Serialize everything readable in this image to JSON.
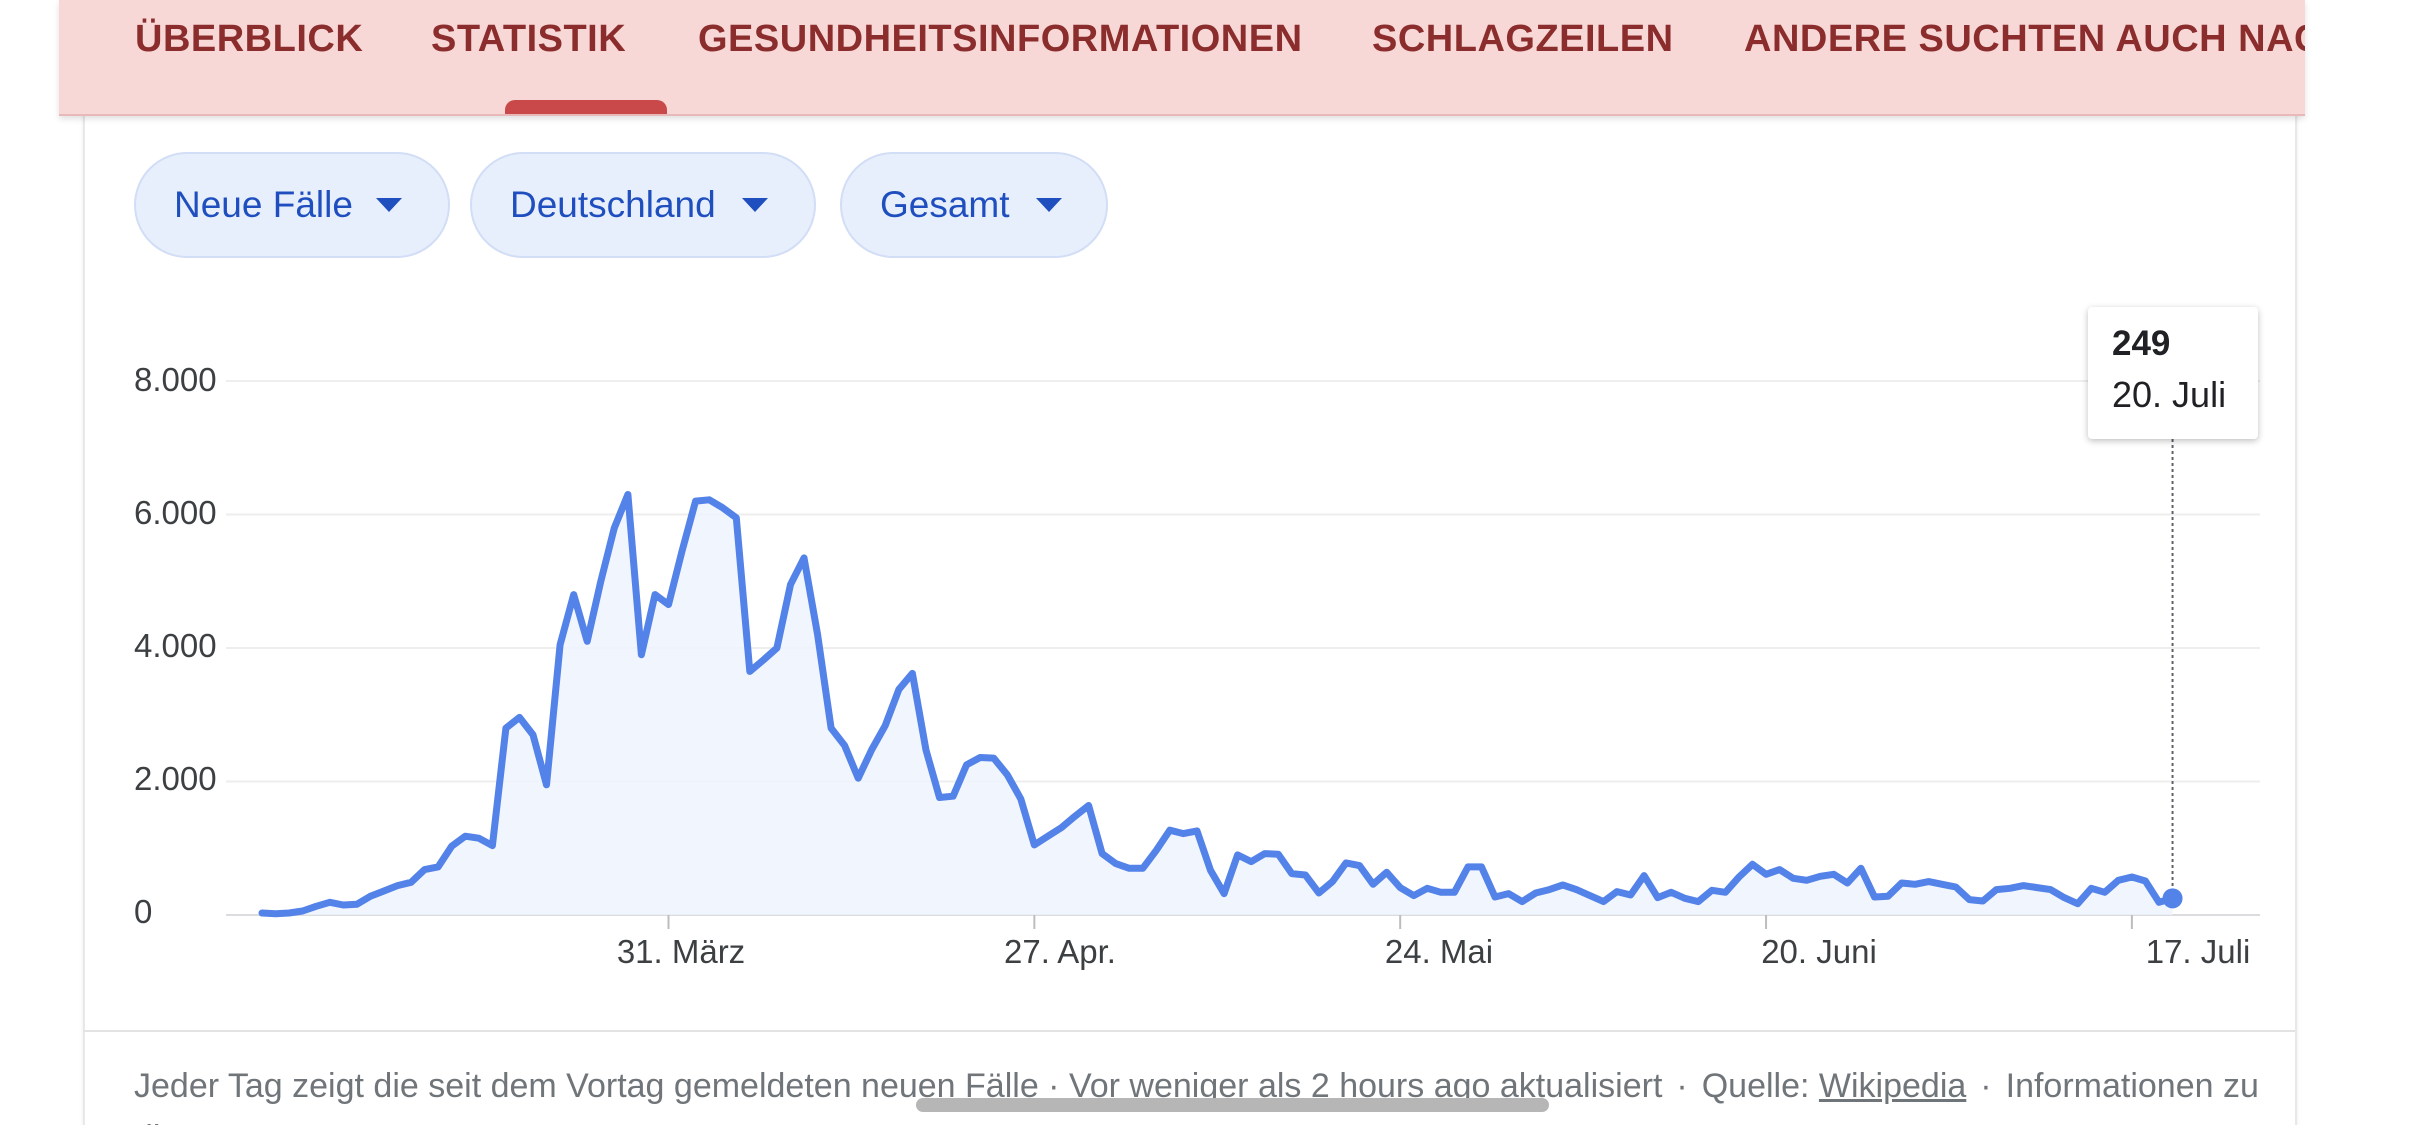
{
  "tabs": [
    {
      "label": "ÜBERBLICK"
    },
    {
      "label": "STATISTIK"
    },
    {
      "label": "GESUNDHEITSINFORMATIONEN"
    },
    {
      "label": "SCHLAGZEILEN"
    },
    {
      "label": "ANDERE SUCHTEN AUCH NACH"
    }
  ],
  "selected_tab": "STATISTIK",
  "filters": [
    {
      "label": "Neue Fälle"
    },
    {
      "label": "Deutschland"
    },
    {
      "label": "Gesamt"
    }
  ],
  "colors": {
    "tab_bar_bg": "#f8d7d7",
    "tab_text": "#8b2d2d",
    "tab_indicator": "#c9484a",
    "chip_bg": "#e8effc",
    "chip_text": "#1f4fbf",
    "line": "#5382e8",
    "area": "#eef2fc"
  },
  "tooltip": {
    "value": "249",
    "date": "20. Juli"
  },
  "footer": {
    "text": "Jeder Tag zeigt die seit dem Vortag gemeldeten neuen Fälle · Vor weniger als 2 hours ago aktualisiert",
    "source_label": "Quelle:",
    "source_link": "Wikipedia",
    "info_link": "Informationen zu diesen Daten"
  },
  "chart_data": {
    "type": "area",
    "ylim": [
      0,
      8000
    ],
    "y_ticks": [
      "0",
      "2.000",
      "4.000",
      "6.000",
      "8.000"
    ],
    "y_tick_values": [
      0,
      2000,
      4000,
      6000,
      8000
    ],
    "x_ticks": [
      "31. März",
      "27. Apr.",
      "24. Mai",
      "20. Juni",
      "17. Juli"
    ],
    "x_tick_dates": [
      "2020-03-31",
      "2020-04-27",
      "2020-05-24",
      "2020-06-20",
      "2020-07-17"
    ],
    "x": [
      "2020-03-01",
      "2020-03-02",
      "2020-03-03",
      "2020-03-04",
      "2020-03-05",
      "2020-03-06",
      "2020-03-07",
      "2020-03-08",
      "2020-03-09",
      "2020-03-10",
      "2020-03-11",
      "2020-03-12",
      "2020-03-13",
      "2020-03-14",
      "2020-03-15",
      "2020-03-16",
      "2020-03-17",
      "2020-03-18",
      "2020-03-19",
      "2020-03-20",
      "2020-03-21",
      "2020-03-22",
      "2020-03-23",
      "2020-03-24",
      "2020-03-25",
      "2020-03-26",
      "2020-03-27",
      "2020-03-28",
      "2020-03-29",
      "2020-03-30",
      "2020-03-31",
      "2020-04-01",
      "2020-04-02",
      "2020-04-03",
      "2020-04-04",
      "2020-04-05",
      "2020-04-06",
      "2020-04-07",
      "2020-04-08",
      "2020-04-09",
      "2020-04-10",
      "2020-04-11",
      "2020-04-12",
      "2020-04-13",
      "2020-04-14",
      "2020-04-15",
      "2020-04-16",
      "2020-04-17",
      "2020-04-18",
      "2020-04-19",
      "2020-04-20",
      "2020-04-21",
      "2020-04-22",
      "2020-04-23",
      "2020-04-24",
      "2020-04-25",
      "2020-04-26",
      "2020-04-27",
      "2020-04-28",
      "2020-04-29",
      "2020-04-30",
      "2020-05-01",
      "2020-05-02",
      "2020-05-03",
      "2020-05-04",
      "2020-05-05",
      "2020-05-06",
      "2020-05-07",
      "2020-05-08",
      "2020-05-09",
      "2020-05-10",
      "2020-05-11",
      "2020-05-12",
      "2020-05-13",
      "2020-05-14",
      "2020-05-15",
      "2020-05-16",
      "2020-05-17",
      "2020-05-18",
      "2020-05-19",
      "2020-05-20",
      "2020-05-21",
      "2020-05-22",
      "2020-05-23",
      "2020-05-24",
      "2020-05-25",
      "2020-05-26",
      "2020-05-27",
      "2020-05-28",
      "2020-05-29",
      "2020-05-30",
      "2020-05-31",
      "2020-06-01",
      "2020-06-02",
      "2020-06-03",
      "2020-06-04",
      "2020-06-05",
      "2020-06-06",
      "2020-06-07",
      "2020-06-08",
      "2020-06-09",
      "2020-06-10",
      "2020-06-11",
      "2020-06-12",
      "2020-06-13",
      "2020-06-14",
      "2020-06-15",
      "2020-06-16",
      "2020-06-17",
      "2020-06-18",
      "2020-06-19",
      "2020-06-20",
      "2020-06-21",
      "2020-06-22",
      "2020-06-23",
      "2020-06-24",
      "2020-06-25",
      "2020-06-26",
      "2020-06-27",
      "2020-06-28",
      "2020-06-29",
      "2020-06-30",
      "2020-07-01",
      "2020-07-02",
      "2020-07-03",
      "2020-07-04",
      "2020-07-05",
      "2020-07-06",
      "2020-07-07",
      "2020-07-08",
      "2020-07-09",
      "2020-07-10",
      "2020-07-11",
      "2020-07-12",
      "2020-07-13",
      "2020-07-14",
      "2020-07-15",
      "2020-07-16",
      "2020-07-17",
      "2020-07-18",
      "2020-07-19",
      "2020-07-20"
    ],
    "series": [
      {
        "values": [
          30,
          20,
          30,
          60,
          130,
          190,
          150,
          160,
          280,
          360,
          440,
          490,
          680,
          720,
          1030,
          1180,
          1150,
          1040,
          2800,
          2960,
          2700,
          1950,
          4050,
          4800,
          4100,
          5000,
          5800,
          6300,
          3900,
          4800,
          4650,
          5450,
          6200,
          6220,
          6100,
          5950,
          3650,
          3820,
          4000,
          4950,
          5350,
          4200,
          2800,
          2540,
          2050,
          2480,
          2840,
          3380,
          3620,
          2470,
          1760,
          1780,
          2250,
          2360,
          2350,
          2100,
          1740,
          1050,
          1180,
          1310,
          1480,
          1640,
          920,
          770,
          700,
          700,
          970,
          1270,
          1220,
          1260,
          670,
          320,
          900,
          800,
          920,
          910,
          620,
          600,
          330,
          500,
          780,
          740,
          460,
          640,
          410,
          290,
          400,
          340,
          340,
          720,
          720,
          270,
          320,
          200,
          330,
          380,
          450,
          380,
          290,
          200,
          350,
          300,
          590,
          260,
          340,
          250,
          200,
          370,
          340,
          570,
          760,
          610,
          680,
          550,
          520,
          580,
          610,
          480,
          700,
          270,
          280,
          480,
          460,
          500,
          460,
          420,
          230,
          210,
          380,
          400,
          440,
          410,
          380,
          260,
          170,
          400,
          340,
          520,
          570,
          510,
          190,
          249
        ]
      }
    ]
  }
}
